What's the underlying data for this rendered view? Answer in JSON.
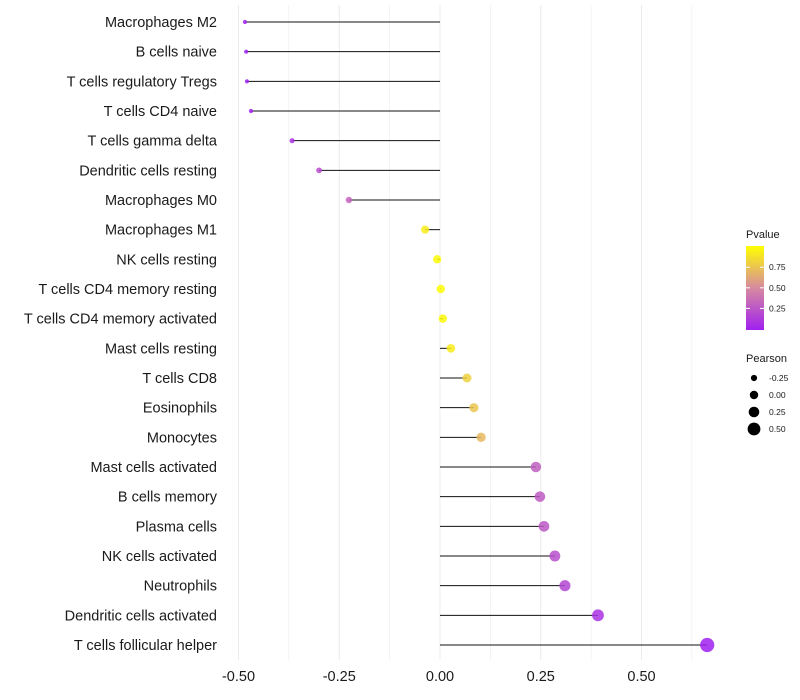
{
  "chart_data": {
    "type": "lollipop",
    "xlabel": "",
    "ylabel": "",
    "xlim": [
      -0.52,
      0.68
    ],
    "x_ticks": [
      -0.5,
      -0.25,
      0.0,
      0.25,
      0.5
    ],
    "x_tick_labels": [
      "-0.50",
      "-0.25",
      "0.00",
      "0.25",
      "0.50"
    ],
    "grid": true,
    "categories": [
      "Macrophages M2",
      "B cells naive",
      "T cells regulatory  Tregs",
      "T cells CD4 naive",
      "T cells gamma delta",
      "Dendritic cells resting",
      "Macrophages M0",
      "Macrophages M1",
      "NK cells resting",
      "T cells CD4 memory resting",
      "T cells CD4 memory activated",
      "Mast cells resting",
      "T cells CD8",
      "Eosinophils",
      "Monocytes",
      "Mast cells activated",
      "B cells memory",
      "Plasma cells",
      "NK cells activated",
      "Neutrophils",
      "Dendritic cells activated",
      "T cells follicular helper"
    ],
    "pearson": [
      -0.484,
      -0.481,
      -0.479,
      -0.469,
      -0.367,
      -0.3,
      -0.226,
      -0.037,
      -0.007,
      0.002,
      0.007,
      0.027,
      0.067,
      0.084,
      0.102,
      0.238,
      0.248,
      0.258,
      0.285,
      0.31,
      0.392,
      0.663
    ],
    "pvalue": [
      0.001,
      0.001,
      0.001,
      0.002,
      0.08,
      0.2,
      0.32,
      0.92,
      0.98,
      0.99,
      0.97,
      0.92,
      0.8,
      0.75,
      0.7,
      0.3,
      0.28,
      0.26,
      0.22,
      0.18,
      0.08,
      0.001
    ],
    "legend": {
      "color_title": "Pvalue",
      "color_ticks": [
        "0.25",
        "0.50",
        "0.75"
      ],
      "size_title": "Pearson",
      "size_ticks": [
        "-0.25",
        "0.00",
        "0.25",
        "0.50"
      ],
      "placement": "right"
    },
    "colors": {
      "low": "#A020F0",
      "mid": "#D68AA0",
      "high": "#FFFF00"
    }
  }
}
